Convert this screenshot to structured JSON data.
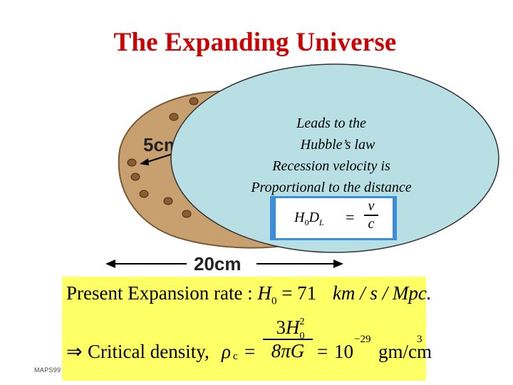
{
  "title": "The Expanding Universe",
  "diagram": {
    "radius_label_number": "5",
    "radius_label_unit": "cm",
    "diameter_label_number": "20",
    "diameter_label_unit": "cm",
    "watermark": "MAPS99",
    "colors": {
      "blob_fill": "#c8a070",
      "blob_stroke": "#7a5a34",
      "bubble_fill": "#b7dfe4",
      "bubble_stroke": "#333333",
      "formula_border": "#3a8fd8",
      "yellow_box": "#ffff66",
      "title": "#cc0000"
    }
  },
  "bubble": {
    "line1": "Leads to the",
    "line2": "Hubble’s law",
    "line3": "Recession velocity is",
    "line4": "Proportional to the distance"
  },
  "hubble_formula": {
    "lhs_h": "H",
    "lhs_h_sub": "0",
    "lhs_d": "D",
    "lhs_d_sub": "L",
    "eq": "=",
    "numerator": "v",
    "denominator": "c"
  },
  "expansion": {
    "label": "Present Expansion rate :",
    "symbol": "H",
    "symbol_sub": "0",
    "eq": "=",
    "value": "71",
    "unit": "km / s / Mpc."
  },
  "density": {
    "implies": "⇒",
    "label": "Critical density,",
    "symbol": "ρ",
    "symbol_sub": "c",
    "eq1": "=",
    "num_coef": "3",
    "num_h": "H",
    "num_sup": "2",
    "num_sub": "0",
    "den": "8πG",
    "eq2": "=",
    "base": "10",
    "exponent": "−29",
    "unit": "gm/cm",
    "unit_sup": "3"
  }
}
